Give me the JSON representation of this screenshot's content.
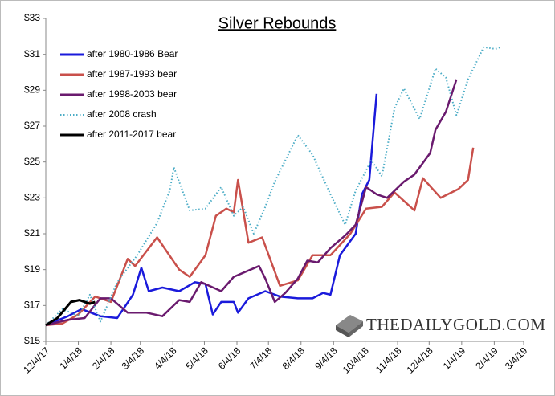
{
  "chart_data": {
    "type": "line",
    "title": "Silver Rebounds",
    "xlim": [
      "2017-12-04",
      "2019-03-04"
    ],
    "xticks": [
      {
        "value": "2017-12-04",
        "label": "12/4/17"
      },
      {
        "value": "2018-01-04",
        "label": "1/4/18"
      },
      {
        "value": "2018-02-04",
        "label": "2/4/18"
      },
      {
        "value": "2018-03-04",
        "label": "3/4/18"
      },
      {
        "value": "2018-04-04",
        "label": "4/4/18"
      },
      {
        "value": "2018-05-04",
        "label": "5/4/18"
      },
      {
        "value": "2018-06-04",
        "label": "6/4/18"
      },
      {
        "value": "2018-07-04",
        "label": "7/4/18"
      },
      {
        "value": "2018-08-04",
        "label": "8/4/18"
      },
      {
        "value": "2018-09-04",
        "label": "9/4/18"
      },
      {
        "value": "2018-10-04",
        "label": "10/4/18"
      },
      {
        "value": "2018-11-04",
        "label": "11/4/18"
      },
      {
        "value": "2018-12-04",
        "label": "12/4/18"
      },
      {
        "value": "2019-01-04",
        "label": "1/4/19"
      },
      {
        "value": "2019-02-04",
        "label": "2/4/19"
      },
      {
        "value": "2019-03-04",
        "label": "3/4/19"
      }
    ],
    "ylim": [
      15,
      33
    ],
    "yticks": [
      {
        "value": 15,
        "label": "$15"
      },
      {
        "value": 17,
        "label": "$17"
      },
      {
        "value": 19,
        "label": "$19"
      },
      {
        "value": 21,
        "label": "$21"
      },
      {
        "value": 23,
        "label": "$23"
      },
      {
        "value": 25,
        "label": "$25"
      },
      {
        "value": 27,
        "label": "$27"
      },
      {
        "value": 29,
        "label": "$29"
      },
      {
        "value": 31,
        "label": "$31"
      },
      {
        "value": 33,
        "label": "$33"
      }
    ],
    "legend": "upper left",
    "watermark": "THEDAILYGOLD.COM",
    "series": [
      {
        "name": "after 1980-1986 Bear",
        "color": "#1a1adb",
        "style": "solid",
        "x": [
          "2017-12-04",
          "2017-12-25",
          "2018-01-07",
          "2018-01-25",
          "2018-02-10",
          "2018-02-25",
          "2018-03-05",
          "2018-03-12",
          "2018-03-25",
          "2018-04-10",
          "2018-04-25",
          "2018-05-05",
          "2018-05-12",
          "2018-05-20",
          "2018-06-01",
          "2018-06-05",
          "2018-06-15",
          "2018-07-01",
          "2018-07-15",
          "2018-08-01",
          "2018-08-15",
          "2018-08-25",
          "2018-09-01",
          "2018-09-10",
          "2018-09-25",
          "2018-10-01",
          "2018-10-08",
          "2018-10-15"
        ],
        "values": [
          15.9,
          16.4,
          16.8,
          16.4,
          16.3,
          17.6,
          19.1,
          17.8,
          18.0,
          17.8,
          18.3,
          18.2,
          16.5,
          17.2,
          17.2,
          16.6,
          17.4,
          17.8,
          17.5,
          17.4,
          17.4,
          17.7,
          17.6,
          19.8,
          21.0,
          23.2,
          24.0,
          28.8
        ]
      },
      {
        "name": "after 1987-1993 bear",
        "color": "#c9504b",
        "style": "solid",
        "x": [
          "2017-12-04",
          "2017-12-20",
          "2018-01-04",
          "2018-01-20",
          "2018-02-04",
          "2018-02-20",
          "2018-02-27",
          "2018-03-20",
          "2018-04-10",
          "2018-04-20",
          "2018-05-05",
          "2018-05-15",
          "2018-05-25",
          "2018-06-01",
          "2018-06-05",
          "2018-06-15",
          "2018-06-28",
          "2018-07-15",
          "2018-08-01",
          "2018-08-15",
          "2018-09-01",
          "2018-09-20",
          "2018-10-05",
          "2018-10-20",
          "2018-11-01",
          "2018-11-20",
          "2018-11-28",
          "2018-12-15",
          "2019-01-01",
          "2019-01-10",
          "2019-01-15"
        ],
        "values": [
          15.9,
          16.0,
          16.5,
          17.5,
          17.2,
          19.6,
          19.2,
          20.8,
          19.0,
          18.6,
          19.8,
          22.0,
          22.4,
          22.2,
          24.0,
          20.5,
          20.8,
          18.1,
          18.4,
          19.8,
          19.8,
          21.0,
          22.4,
          22.5,
          23.3,
          22.3,
          24.1,
          23.0,
          23.5,
          24.0,
          25.8
        ]
      },
      {
        "name": "after 1998-2003 bear",
        "color": "#6a1a6e",
        "style": "solid",
        "x": [
          "2017-12-04",
          "2017-12-25",
          "2018-01-10",
          "2018-01-25",
          "2018-02-04",
          "2018-02-20",
          "2018-03-10",
          "2018-03-25",
          "2018-04-10",
          "2018-04-20",
          "2018-05-01",
          "2018-05-20",
          "2018-06-01",
          "2018-06-25",
          "2018-07-01",
          "2018-07-10",
          "2018-07-20",
          "2018-08-01",
          "2018-08-10",
          "2018-08-20",
          "2018-09-01",
          "2018-09-15",
          "2018-09-25",
          "2018-10-05",
          "2018-10-15",
          "2018-10-25",
          "2018-11-10",
          "2018-11-20",
          "2018-12-05",
          "2018-12-10",
          "2018-12-20",
          "2018-12-30"
        ],
        "values": [
          15.9,
          16.2,
          16.3,
          17.4,
          17.4,
          16.6,
          16.6,
          16.4,
          17.3,
          17.2,
          18.3,
          17.8,
          18.6,
          19.2,
          18.5,
          17.2,
          17.7,
          18.5,
          19.5,
          19.4,
          20.2,
          20.9,
          21.5,
          23.6,
          23.2,
          23.0,
          23.9,
          24.3,
          25.5,
          26.8,
          27.8,
          29.6
        ]
      },
      {
        "name": "after 2008 crash",
        "color": "#4bacc6",
        "style": "dotted",
        "x": [
          "2017-12-04",
          "2017-12-20",
          "2018-01-04",
          "2018-01-15",
          "2018-01-25",
          "2018-02-10",
          "2018-03-01",
          "2018-03-20",
          "2018-04-01",
          "2018-04-05",
          "2018-04-20",
          "2018-05-05",
          "2018-05-20",
          "2018-06-01",
          "2018-06-10",
          "2018-06-20",
          "2018-07-01",
          "2018-07-10",
          "2018-08-01",
          "2018-08-15",
          "2018-09-01",
          "2018-09-15",
          "2018-09-25",
          "2018-10-10",
          "2018-10-20",
          "2018-11-01",
          "2018-11-10",
          "2018-11-25",
          "2018-12-10",
          "2018-12-20",
          "2018-12-30",
          "2019-01-10",
          "2019-01-25",
          "2019-02-05",
          "2019-02-10"
        ],
        "values": [
          15.9,
          16.8,
          16.4,
          17.6,
          16.1,
          18.3,
          19.8,
          21.6,
          23.4,
          24.7,
          22.3,
          22.4,
          23.6,
          22.0,
          22.5,
          21.0,
          22.5,
          23.9,
          26.5,
          25.4,
          23.2,
          21.5,
          23.4,
          25.1,
          24.2,
          28.0,
          29.1,
          27.4,
          30.2,
          29.7,
          27.6,
          29.6,
          31.4,
          31.3,
          31.4
        ]
      },
      {
        "name": "after 2011-2017 bear",
        "color": "#000000",
        "style": "solid",
        "x": [
          "2017-12-04",
          "2017-12-15",
          "2017-12-28",
          "2018-01-05",
          "2018-01-15",
          "2018-01-20"
        ],
        "values": [
          15.9,
          16.3,
          17.2,
          17.3,
          17.1,
          17.2
        ]
      }
    ]
  }
}
